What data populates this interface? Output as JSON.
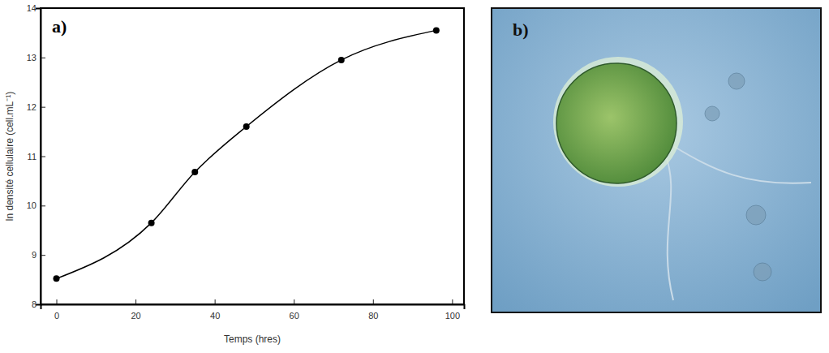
{
  "chart_data": {
    "type": "line",
    "annotations": [
      "a)"
    ],
    "x_label": "Temps (hres)",
    "y_label": "ln densité cellulaire (cell.mL⁻¹)",
    "x": [
      0,
      24,
      35,
      48,
      72,
      96
    ],
    "values": [
      8.52,
      9.65,
      10.68,
      11.6,
      12.95,
      13.55
    ],
    "color": "#000000",
    "marker": "circle",
    "line_style": "solid",
    "xlim": [
      -4,
      103
    ],
    "xticks": [
      0,
      20,
      40,
      60,
      80,
      100
    ],
    "ylim": [
      8,
      14
    ],
    "yticks": [
      8,
      9,
      10,
      11,
      12,
      13,
      14
    ],
    "grid": false
  },
  "image_panel": {
    "label": "b)"
  }
}
